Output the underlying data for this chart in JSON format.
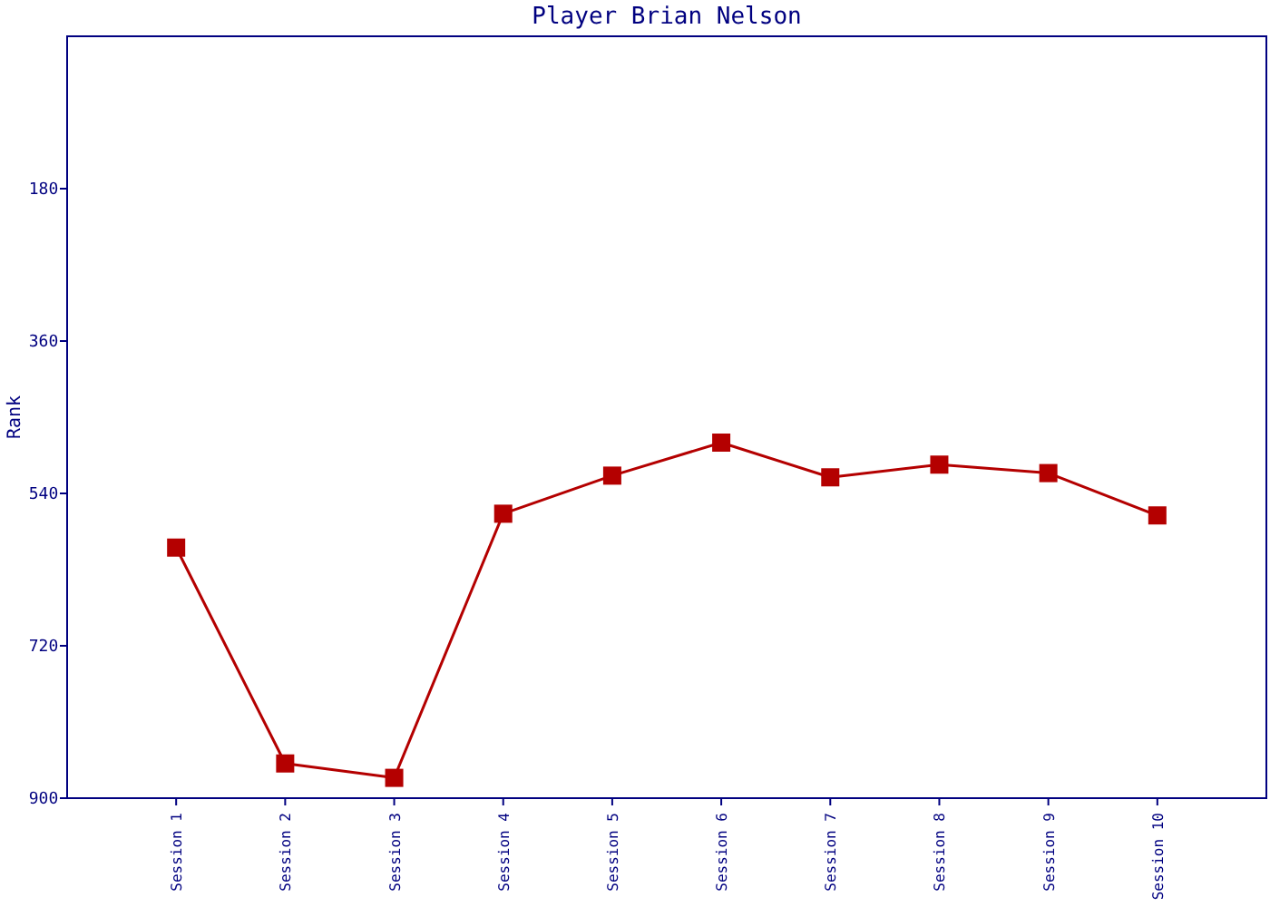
{
  "chart_data": {
    "type": "line",
    "title": "Player Brian Nelson",
    "ylabel": "Rank",
    "categories": [
      "Session 1",
      "Session 2",
      "Session 3",
      "Session 4",
      "Session 5",
      "Session 6",
      "Session 7",
      "Session 8",
      "Session 9",
      "Session 10"
    ],
    "series": [
      {
        "color": "#b40000",
        "values": [
          604,
          859,
          876,
          564,
          519,
          480,
          521,
          506,
          516,
          566
        ]
      }
    ],
    "ylim": [
      900,
      0
    ],
    "yticks": [
      180,
      360,
      540,
      720,
      900
    ],
    "marker": "square",
    "line_style": "solid"
  }
}
